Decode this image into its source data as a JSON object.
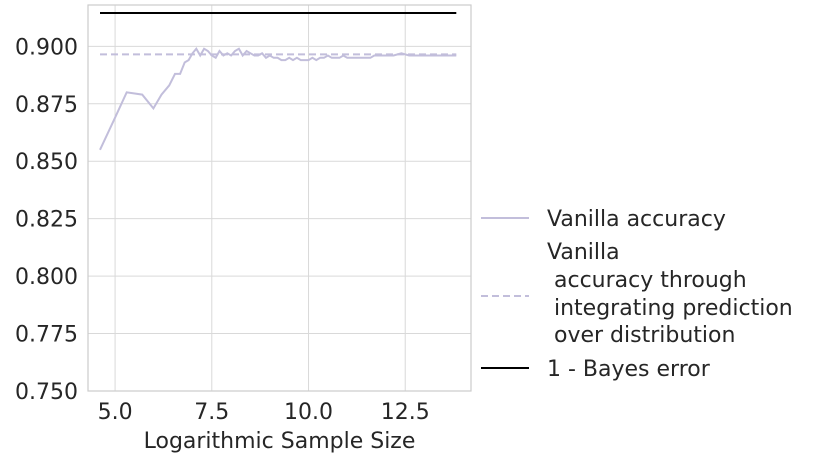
{
  "chart_data": {
    "type": "line",
    "title": "",
    "xlabel": "Logarithmic Sample Size",
    "ylabel": "",
    "xlim": [
      4.3,
      14.2
    ],
    "ylim": [
      0.75,
      0.918
    ],
    "xticks": [
      "5.0",
      "7.5",
      "10.0",
      "12.5"
    ],
    "xtick_values": [
      5.0,
      7.5,
      10.0,
      12.5
    ],
    "yticks": [
      "0.750",
      "0.775",
      "0.800",
      "0.825",
      "0.850",
      "0.875",
      "0.900"
    ],
    "ytick_values": [
      0.75,
      0.775,
      0.8,
      0.825,
      0.85,
      0.875,
      0.9
    ],
    "grid": true,
    "legend_position": "right",
    "series": [
      {
        "name": "Vanilla accuracy",
        "style": "solid",
        "color": "#c2bedb",
        "x": [
          4.61,
          5.0,
          5.3,
          5.7,
          5.99,
          6.2,
          6.4,
          6.55,
          6.68,
          6.8,
          6.9,
          7.0,
          7.1,
          7.2,
          7.3,
          7.4,
          7.5,
          7.6,
          7.7,
          7.8,
          7.9,
          8.0,
          8.1,
          8.2,
          8.3,
          8.4,
          8.5,
          8.6,
          8.7,
          8.8,
          8.9,
          9.0,
          9.1,
          9.2,
          9.3,
          9.4,
          9.5,
          9.6,
          9.7,
          9.8,
          9.9,
          10.0,
          10.1,
          10.2,
          10.3,
          10.4,
          10.5,
          10.6,
          10.7,
          10.8,
          10.9,
          11.0,
          11.1,
          11.2,
          11.3,
          11.4,
          11.5,
          11.6,
          11.7,
          11.8,
          11.9,
          12.0,
          12.2,
          12.4,
          12.6,
          12.8,
          13.0,
          13.2,
          13.4,
          13.6,
          13.82
        ],
        "y": [
          0.855,
          0.869,
          0.88,
          0.879,
          0.873,
          0.879,
          0.883,
          0.888,
          0.888,
          0.893,
          0.894,
          0.897,
          0.899,
          0.896,
          0.899,
          0.898,
          0.896,
          0.895,
          0.898,
          0.896,
          0.897,
          0.896,
          0.898,
          0.899,
          0.896,
          0.898,
          0.897,
          0.896,
          0.896,
          0.897,
          0.895,
          0.896,
          0.895,
          0.895,
          0.894,
          0.894,
          0.895,
          0.894,
          0.895,
          0.894,
          0.894,
          0.894,
          0.895,
          0.894,
          0.895,
          0.895,
          0.896,
          0.895,
          0.895,
          0.895,
          0.896,
          0.895,
          0.895,
          0.895,
          0.895,
          0.895,
          0.895,
          0.895,
          0.896,
          0.896,
          0.896,
          0.896,
          0.896,
          0.897,
          0.896,
          0.896,
          0.896,
          0.896,
          0.896,
          0.896,
          0.896
        ]
      },
      {
        "name": "Vanilla\n accuracy through\n integrating prediction\n over distribution",
        "style": "dashed",
        "color": "#c2bedb",
        "x": [
          4.61,
          13.82
        ],
        "y": [
          0.8965,
          0.8965
        ]
      },
      {
        "name": "1 - Bayes error",
        "style": "solid",
        "color": "#000000",
        "x": [
          4.61,
          13.82
        ],
        "y": [
          0.9145,
          0.9145
        ]
      }
    ]
  }
}
